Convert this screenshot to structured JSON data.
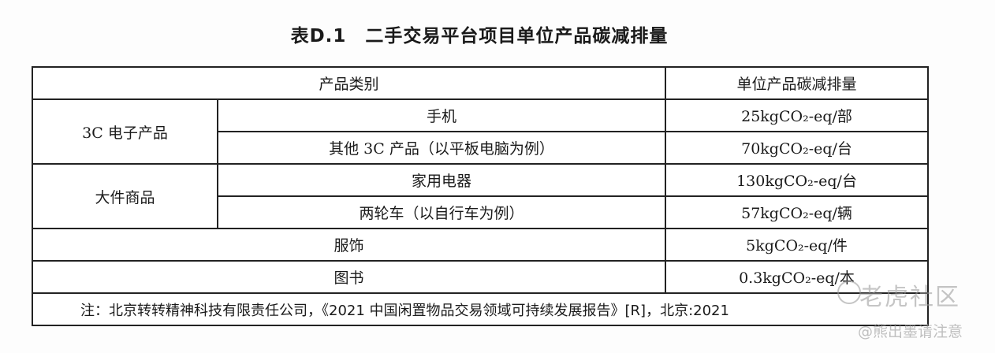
{
  "title": "表D.1　二手交易平台项目单位产品碳减排量",
  "header": {
    "category": "产品类别",
    "reduction": "单位产品碳减排量"
  },
  "groups": [
    {
      "name": "3C 电子产品",
      "rows": [
        {
          "item": "手机",
          "value": "25kgCO₂-eq/部"
        },
        {
          "item": "其他 3C 产品（以平板电脑为例）",
          "value": "70kgCO₂-eq/台"
        }
      ]
    },
    {
      "name": "大件商品",
      "rows": [
        {
          "item": "家用电器",
          "value": "130kgCO₂-eq/台"
        },
        {
          "item": "两轮车（以自行车为例）",
          "value": "57kgCO₂-eq/辆"
        }
      ]
    }
  ],
  "singles": [
    {
      "item": "服饰",
      "value": "5kgCO₂-eq/件"
    },
    {
      "item": "图书",
      "value": "0.3kgCO₂-eq/本"
    }
  ],
  "note": "注：北京转转精神科技有限责任公司，《2021 中国闲置物品交易领域可持续发展报告》[R]，北京:2021",
  "watermark": {
    "brand": "老虎社区",
    "user": "@熊出墨请注意"
  }
}
